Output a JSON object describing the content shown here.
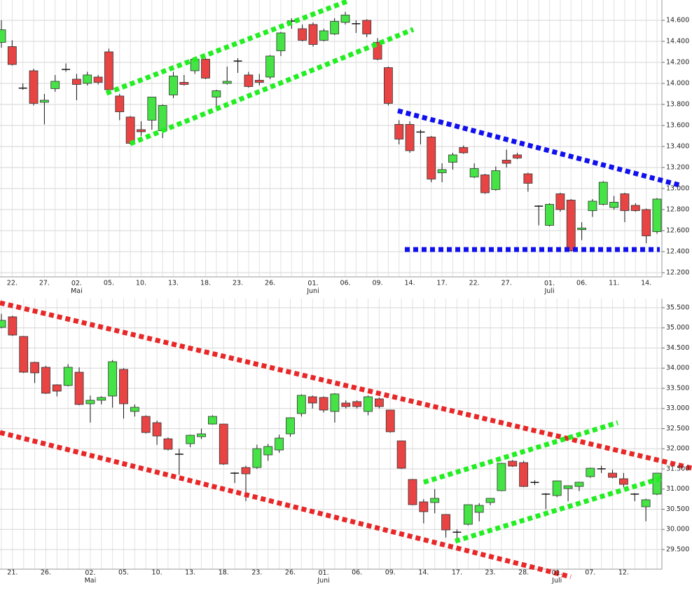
{
  "chart_data": [
    {
      "type": "candlestick",
      "categories": [
        null,
        "22.",
        null,
        null,
        "27.",
        null,
        null,
        "02.\nMai",
        null,
        null,
        "05.",
        null,
        null,
        "10.",
        null,
        null,
        "13.",
        null,
        null,
        "18.",
        null,
        null,
        "23.",
        null,
        null,
        "26.",
        null,
        null,
        null,
        "01.\nJuni",
        null,
        null,
        "06.",
        null,
        null,
        "09.",
        null,
        null,
        "14.",
        null,
        null,
        "17.",
        null,
        null,
        "22.",
        null,
        null,
        "27.",
        null,
        null,
        null,
        "01.\nJuli",
        null,
        null,
        "06.",
        null,
        null,
        "11.",
        null,
        null,
        "14.",
        null
      ],
      "open": [
        14390,
        14350,
        13950,
        14120,
        13820,
        13950,
        14130,
        14040,
        14000,
        14060,
        14300,
        13880,
        13680,
        13560,
        13650,
        13550,
        13890,
        14010,
        14120,
        14230,
        13870,
        14000,
        14210,
        14080,
        14030,
        14060,
        14310,
        14590,
        14520,
        14560,
        14410,
        14470,
        14580,
        14570,
        14600,
        14390,
        14150,
        13610,
        13610,
        13540,
        13490,
        13150,
        13250,
        13390,
        13110,
        13130,
        12990,
        13270,
        13320,
        13140,
        12835,
        12650,
        12950,
        12890,
        12610,
        12790,
        12850,
        12820,
        12950,
        12840,
        12800,
        12590
      ],
      "high": [
        14600,
        14410,
        14000,
        14140,
        13900,
        14080,
        14190,
        14090,
        14110,
        14080,
        14330,
        13900,
        13690,
        13640,
        13870,
        13800,
        14110,
        14080,
        14230,
        14240,
        13940,
        14160,
        14240,
        14110,
        14090,
        14270,
        14490,
        14620,
        14560,
        14580,
        14520,
        14620,
        14680,
        14600,
        14610,
        14430,
        14160,
        13650,
        13640,
        13560,
        13500,
        13240,
        13340,
        13410,
        13240,
        13140,
        13210,
        13370,
        13340,
        13150,
        12840,
        12860,
        12960,
        12900,
        12680,
        12900,
        13070,
        12930,
        12960,
        12860,
        12810,
        12910
      ],
      "low": [
        14340,
        14170,
        13940,
        13790,
        13610,
        13920,
        14110,
        13840,
        13980,
        13990,
        13930,
        13650,
        13420,
        13500,
        13560,
        13480,
        13860,
        13980,
        14090,
        14040,
        13760,
        13990,
        14100,
        13960,
        13980,
        14040,
        14260,
        14520,
        14400,
        14350,
        14400,
        14460,
        14560,
        14480,
        14440,
        14220,
        13790,
        13420,
        13340,
        13420,
        13060,
        13060,
        13180,
        13330,
        13100,
        12950,
        12980,
        13200,
        13280,
        12970,
        12650,
        12640,
        12780,
        12400,
        12510,
        12730,
        12840,
        12800,
        12680,
        12780,
        12480,
        12570
      ],
      "close": [
        14510,
        14180,
        13960,
        13810,
        13840,
        14020,
        14135,
        13990,
        14080,
        14010,
        13940,
        13730,
        13430,
        13540,
        13870,
        13790,
        14070,
        13990,
        14230,
        14050,
        13930,
        14020,
        14215,
        13970,
        14010,
        14260,
        14480,
        14595,
        14410,
        14370,
        14500,
        14590,
        14650,
        14565,
        14470,
        14230,
        13810,
        13470,
        13360,
        13535,
        13090,
        13180,
        13320,
        13340,
        13190,
        12960,
        13170,
        13240,
        13290,
        13050,
        12830,
        12850,
        12800,
        12410,
        12625,
        12880,
        13060,
        12870,
        12790,
        12790,
        12550,
        12900
      ],
      "up_color": "#45e345",
      "down_color": "#e84444",
      "ylim": [
        12160,
        14793
      ],
      "yticks": [
        {
          "value": 12200,
          "label": "12.200"
        },
        {
          "value": 12400,
          "label": "12.400"
        },
        {
          "value": 12600,
          "label": "12.600"
        },
        {
          "value": 12800,
          "label": "12.800"
        },
        {
          "value": 13000,
          "label": "13.000"
        },
        {
          "value": 13200,
          "label": "13.200"
        },
        {
          "value": 13400,
          "label": "13.400"
        },
        {
          "value": 13600,
          "label": "13.600"
        },
        {
          "value": 13800,
          "label": "13.800"
        },
        {
          "value": 14000,
          "label": "14.000"
        },
        {
          "value": 14200,
          "label": "14.200"
        },
        {
          "value": 14400,
          "label": "14.400"
        },
        {
          "value": 14600,
          "label": "14.600"
        }
      ],
      "grid": true
    },
    {
      "type": "candlestick",
      "categories": [
        null,
        "21.",
        null,
        null,
        "26.",
        null,
        null,
        null,
        "02.\nMai",
        null,
        null,
        "05.",
        null,
        null,
        "10.",
        null,
        null,
        "13.",
        null,
        null,
        "18.",
        null,
        null,
        "23.",
        null,
        null,
        "26.",
        null,
        null,
        "01.\nJuni",
        null,
        null,
        "06.",
        null,
        null,
        "09.",
        null,
        null,
        "14.",
        null,
        null,
        "17.",
        null,
        null,
        "23.",
        null,
        null,
        "28.",
        null,
        null,
        "01.\nJuli",
        null,
        null,
        "07.",
        null,
        null,
        "12.",
        null,
        null,
        null
      ],
      "open": [
        35013,
        35274,
        34787,
        34144,
        34022,
        33587,
        33570,
        33900,
        33117,
        33204,
        33309,
        33970,
        32926,
        32804,
        32648,
        32248,
        31870,
        32126,
        32300,
        32613,
        32613,
        31400,
        31535,
        31535,
        31848,
        31970,
        32370,
        32874,
        33291,
        33274,
        32926,
        33135,
        33170,
        32926,
        33239,
        32961,
        32196,
        31239,
        30683,
        30666,
        30370,
        29935,
        30126,
        30422,
        30666,
        30961,
        31691,
        31657,
        31180,
        30880,
        30839,
        31013,
        31065,
        31309,
        31500,
        31396,
        31257,
        30880,
        30561,
        30874
      ],
      "high": [
        35350,
        35300,
        34800,
        34160,
        34060,
        33600,
        34100,
        34020,
        33320,
        33300,
        34200,
        34000,
        33100,
        32830,
        32700,
        32280,
        32000,
        32350,
        32500,
        32830,
        32620,
        31420,
        31580,
        32100,
        32120,
        32350,
        32780,
        33350,
        33320,
        33300,
        33380,
        33200,
        33200,
        33320,
        33270,
        32970,
        32200,
        31250,
        30750,
        31000,
        30380,
        30000,
        30620,
        30650,
        30780,
        31650,
        31720,
        31700,
        31220,
        30900,
        31210,
        31090,
        31180,
        31530,
        31580,
        31480,
        31400,
        30900,
        30760,
        31400
      ],
      "low": [
        34990,
        34800,
        33880,
        33630,
        33360,
        33300,
        33550,
        33080,
        32650,
        33100,
        33020,
        32750,
        32800,
        32380,
        32100,
        31960,
        31350,
        32040,
        32240,
        32600,
        31600,
        31150,
        30700,
        31500,
        31700,
        31900,
        32300,
        32800,
        33000,
        32900,
        32650,
        33000,
        33000,
        32830,
        33000,
        32400,
        31500,
        30600,
        30150,
        30400,
        29800,
        29750,
        30100,
        30200,
        30600,
        30950,
        31550,
        31050,
        31100,
        30500,
        30800,
        30700,
        30950,
        31280,
        31400,
        31270,
        31050,
        30700,
        30200,
        30850
      ],
      "close": [
        35187,
        34822,
        33900,
        33883,
        33378,
        33430,
        34022,
        33100,
        33204,
        33274,
        34161,
        33117,
        33030,
        32404,
        32317,
        31987,
        31860,
        32335,
        32370,
        32804,
        31622,
        31390,
        31378,
        32004,
        32057,
        32265,
        32770,
        33326,
        33135,
        32961,
        33361,
        33048,
        33048,
        33291,
        33048,
        32422,
        31518,
        30613,
        30439,
        30770,
        29987,
        29925,
        30613,
        30596,
        30770,
        31639,
        31570,
        31065,
        31150,
        30870,
        31204,
        31083,
        31170,
        31517,
        31505,
        31291,
        31117,
        30870,
        30735,
        31396
      ],
      "up_color": "#45e345",
      "down_color": "#e84444",
      "ylim": [
        29013,
        35726
      ],
      "yticks": [
        {
          "value": 29500,
          "label": "29.500"
        },
        {
          "value": 30000,
          "label": "30.000"
        },
        {
          "value": 30500,
          "label": "30.500"
        },
        {
          "value": 31000,
          "label": "31.000"
        },
        {
          "value": 31500,
          "label": "31.500"
        },
        {
          "value": 32000,
          "label": "32.000"
        },
        {
          "value": 32500,
          "label": "32.500"
        },
        {
          "value": 33000,
          "label": "33.000"
        },
        {
          "value": 33500,
          "label": "33.500"
        },
        {
          "value": 34000,
          "label": "34.000"
        },
        {
          "value": 34500,
          "label": "34.500"
        },
        {
          "value": 35000,
          "label": "35.000"
        },
        {
          "value": 35500,
          "label": "35.500"
        }
      ],
      "grid": true
    }
  ]
}
